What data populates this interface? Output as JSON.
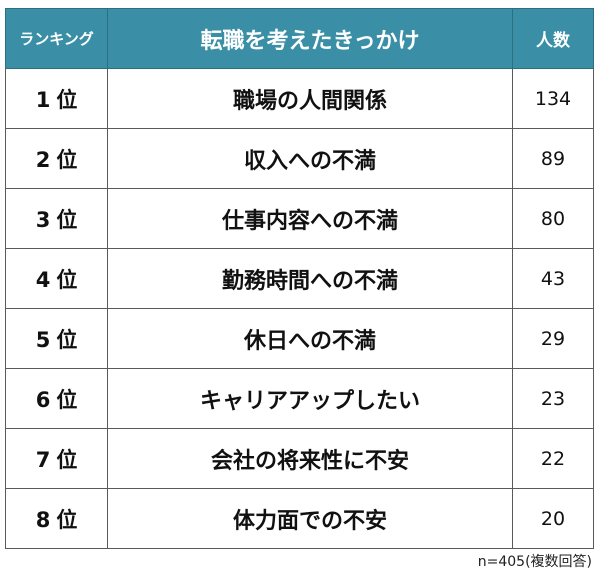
{
  "table": {
    "header": {
      "rank": "ランキング",
      "reason": "転職を考えたきっかけ",
      "count": "人数"
    },
    "header_color": "#3a8fa6",
    "rows": [
      {
        "rank": "1",
        "rank_suffix": "位",
        "reason": "職場の人間関係",
        "count": "134"
      },
      {
        "rank": "2",
        "rank_suffix": "位",
        "reason": "収入への不満",
        "count": "89"
      },
      {
        "rank": "3",
        "rank_suffix": "位",
        "reason": "仕事内容への不満",
        "count": "80"
      },
      {
        "rank": "4",
        "rank_suffix": "位",
        "reason": "勤務時間への不満",
        "count": "43"
      },
      {
        "rank": "5",
        "rank_suffix": "位",
        "reason": "休日への不満",
        "count": "29"
      },
      {
        "rank": "6",
        "rank_suffix": "位",
        "reason": "キャリアアップしたい",
        "count": "23"
      },
      {
        "rank": "7",
        "rank_suffix": "位",
        "reason": "会社の将来性に不安",
        "count": "22"
      },
      {
        "rank": "8",
        "rank_suffix": "位",
        "reason": "体力面での不安",
        "count": "20"
      }
    ]
  },
  "footnote": "n=405(複数回答)",
  "chart_data": {
    "type": "table",
    "title": "転職を考えたきっかけ",
    "columns": [
      "ランキング",
      "転職を考えたきっかけ",
      "人数"
    ],
    "categories": [
      "職場の人間関係",
      "収入への不満",
      "仕事内容への不満",
      "勤務時間への不満",
      "休日への不満",
      "キャリアアップしたい",
      "会社の将来性に不安",
      "体力面での不安"
    ],
    "ranks": [
      "1位",
      "2位",
      "3位",
      "4位",
      "5位",
      "6位",
      "7位",
      "8位"
    ],
    "values": [
      134,
      89,
      80,
      43,
      29,
      23,
      22,
      20
    ],
    "note": "n=405(複数回答)"
  }
}
